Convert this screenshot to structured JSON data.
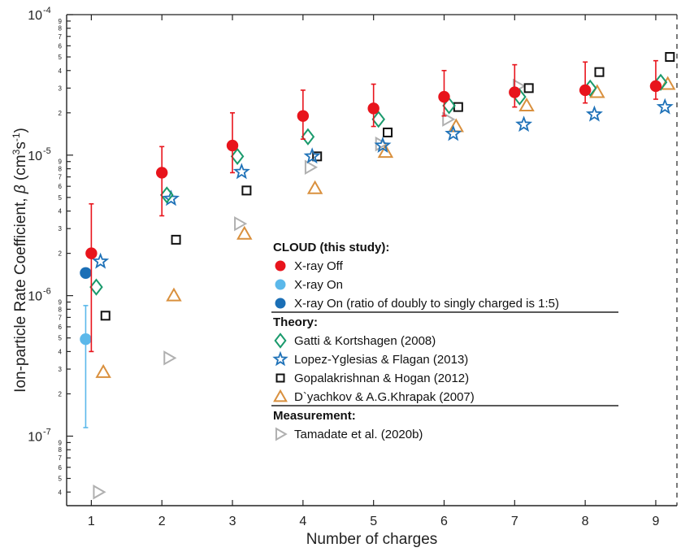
{
  "chart_data": {
    "type": "scatter",
    "xlabel": "Number of charges",
    "ylabel_parts": [
      "Ion-particle Rate Coefficient, ",
      "β",
      " (cm",
      "3",
      "s",
      "-1",
      ")"
    ],
    "x_ticks": [
      1,
      2,
      3,
      4,
      5,
      6,
      7,
      8,
      9
    ],
    "xlim": [
      0.65,
      9.3
    ],
    "y_scale": "log",
    "ylim": [
      3.2e-08,
      0.0001
    ],
    "y_tick_labels": [
      {
        "value": 1e-07,
        "mantissa": "10",
        "exp": "-7"
      },
      {
        "value": 1e-06,
        "mantissa": "10",
        "exp": "-6"
      },
      {
        "value": 1e-05,
        "mantissa": "10",
        "exp": "-5"
      },
      {
        "value": 0.0001,
        "mantissa": "10",
        "exp": "-4"
      }
    ],
    "minor_labels": [
      "2",
      "3",
      "4",
      "5",
      "6",
      "7",
      "8",
      "9"
    ],
    "legend_groups": [
      {
        "heading": "CLOUD (this study):",
        "entries": [
          "X-ray Off",
          "X-ray On",
          "X-ray On (ratio of doubly to singly charged is 1:5)"
        ]
      },
      {
        "heading": "Theory:",
        "entries": [
          "Gatti & Kortshagen (2008)",
          "Lopez-Yglesias & Flagan (2013)",
          "Gopalakrishnan & Hogan (2012)",
          "D`yachkov & A.G.Khrapak (2007)"
        ]
      },
      {
        "heading": "Measurement:",
        "entries": [
          "Tamadate et al. (2020b)"
        ]
      }
    ],
    "series": [
      {
        "name": "X-ray Off",
        "marker": "circle-filled",
        "color": "#e8141c",
        "points": [
          {
            "x": 1,
            "y": 2e-06,
            "ylo": 4e-07,
            "yhi": 4.5e-06
          },
          {
            "x": 2,
            "y": 7.5e-06,
            "ylo": 3.7e-06,
            "yhi": 1.15e-05
          },
          {
            "x": 3,
            "y": 1.17e-05,
            "ylo": 7.5e-06,
            "yhi": 2e-05
          },
          {
            "x": 4,
            "y": 1.9e-05,
            "ylo": 1.3e-05,
            "yhi": 2.9e-05
          },
          {
            "x": 5,
            "y": 2.15e-05,
            "ylo": 1.6e-05,
            "yhi": 3.2e-05
          },
          {
            "x": 6,
            "y": 2.6e-05,
            "ylo": 1.9e-05,
            "yhi": 4e-05
          },
          {
            "x": 7,
            "y": 2.8e-05,
            "ylo": 2.2e-05,
            "yhi": 4.4e-05
          },
          {
            "x": 8,
            "y": 2.9e-05,
            "ylo": 2.35e-05,
            "yhi": 4.6e-05
          },
          {
            "x": 9,
            "y": 3.1e-05,
            "ylo": 2.5e-05,
            "yhi": 4.7e-05
          }
        ]
      },
      {
        "name": "X-ray On",
        "marker": "circle-filled",
        "color": "#5bb8ea",
        "points": [
          {
            "x": 0.92,
            "y": 4.9e-07,
            "ylo": 1.15e-07,
            "yhi": 8.5e-07
          }
        ]
      },
      {
        "name": "X-ray On (ratio of doubly to singly charged is 1:5)",
        "marker": "circle-filled",
        "color": "#1b6fb6",
        "points": [
          {
            "x": 0.92,
            "y": 1.45e-06
          }
        ]
      },
      {
        "name": "Gatti & Kortshagen (2008)",
        "marker": "diamond-open",
        "color": "#1a9a6c",
        "points": [
          {
            "x": 1.07,
            "y": 1.15e-06
          },
          {
            "x": 2.07,
            "y": 5.2e-06
          },
          {
            "x": 3.07,
            "y": 9.8e-06
          },
          {
            "x": 4.07,
            "y": 1.35e-05
          },
          {
            "x": 5.07,
            "y": 1.8e-05
          },
          {
            "x": 6.07,
            "y": 2.25e-05
          },
          {
            "x": 7.07,
            "y": 2.6e-05
          },
          {
            "x": 8.07,
            "y": 3e-05
          },
          {
            "x": 9.07,
            "y": 3.3e-05
          }
        ]
      },
      {
        "name": "Lopez-Yglesias & Flagan (2013)",
        "marker": "star-open",
        "color": "#1f72b8",
        "points": [
          {
            "x": 1.13,
            "y": 1.75e-06
          },
          {
            "x": 2.13,
            "y": 4.9e-06
          },
          {
            "x": 3.13,
            "y": 7.6e-06
          },
          {
            "x": 4.13,
            "y": 9.8e-06
          },
          {
            "x": 5.13,
            "y": 1.17e-05
          },
          {
            "x": 6.13,
            "y": 1.42e-05
          },
          {
            "x": 7.13,
            "y": 1.65e-05
          },
          {
            "x": 8.13,
            "y": 1.95e-05
          },
          {
            "x": 9.13,
            "y": 2.2e-05
          }
        ]
      },
      {
        "name": "Gopalakrishnan & Hogan (2012)",
        "marker": "square-open",
        "color": "#111111",
        "points": [
          {
            "x": 1.2,
            "y": 7.2e-07
          },
          {
            "x": 2.2,
            "y": 2.5e-06
          },
          {
            "x": 3.2,
            "y": 5.6e-06
          },
          {
            "x": 4.2,
            "y": 9.8e-06
          },
          {
            "x": 5.2,
            "y": 1.45e-05
          },
          {
            "x": 6.2,
            "y": 2.2e-05
          },
          {
            "x": 7.2,
            "y": 3e-05
          },
          {
            "x": 8.2,
            "y": 3.9e-05
          },
          {
            "x": 9.2,
            "y": 5e-05
          }
        ]
      },
      {
        "name": "D`yachkov & A.G.Khrapak (2007)",
        "marker": "triangle-up-open",
        "color": "#d9903e",
        "points": [
          {
            "x": 1.17,
            "y": 2.85e-07
          },
          {
            "x": 2.17,
            "y": 1e-06
          },
          {
            "x": 3.17,
            "y": 2.75e-06
          },
          {
            "x": 4.17,
            "y": 5.8e-06
          },
          {
            "x": 5.17,
            "y": 1.05e-05
          },
          {
            "x": 6.17,
            "y": 1.6e-05
          },
          {
            "x": 7.17,
            "y": 2.25e-05
          },
          {
            "x": 8.17,
            "y": 2.8e-05
          },
          {
            "x": 9.17,
            "y": 3.2e-05
          }
        ]
      },
      {
        "name": "Tamadate et al. (2020b)",
        "marker": "triangle-right-open",
        "color": "#b0b0b0",
        "points": [
          {
            "x": 1.1,
            "y": 4e-08
          },
          {
            "x": 2.1,
            "y": 3.6e-07
          },
          {
            "x": 3.1,
            "y": 3.25e-06
          },
          {
            "x": 4.1,
            "y": 8.2e-06
          },
          {
            "x": 5.1,
            "y": 1.2e-05
          },
          {
            "x": 6.05,
            "y": 1.8e-05
          },
          {
            "x": 7.05,
            "y": 3.1e-05
          }
        ]
      }
    ]
  }
}
